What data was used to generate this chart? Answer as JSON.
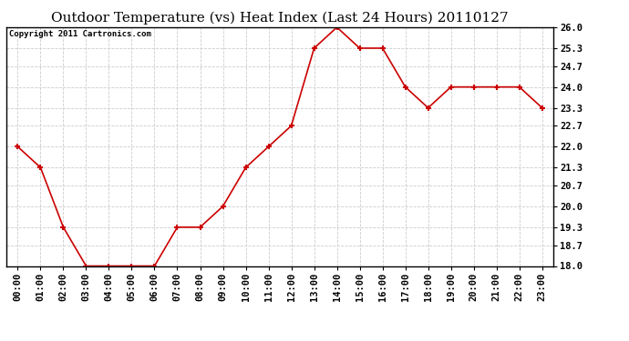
{
  "title": "Outdoor Temperature (vs) Heat Index (Last 24 Hours) 20110127",
  "copyright_text": "Copyright 2011 Cartronics.com",
  "x_labels": [
    "00:00",
    "01:00",
    "02:00",
    "03:00",
    "04:00",
    "05:00",
    "06:00",
    "07:00",
    "08:00",
    "09:00",
    "10:00",
    "11:00",
    "12:00",
    "13:00",
    "14:00",
    "15:00",
    "16:00",
    "17:00",
    "18:00",
    "19:00",
    "20:00",
    "21:00",
    "22:00",
    "23:00"
  ],
  "y_values": [
    22.0,
    21.3,
    19.3,
    18.0,
    18.0,
    18.0,
    18.0,
    19.3,
    19.3,
    20.0,
    21.3,
    22.0,
    22.7,
    25.3,
    26.0,
    25.3,
    25.3,
    24.0,
    23.3,
    24.0,
    24.0,
    24.0,
    24.0,
    23.3
  ],
  "y_min": 18.0,
  "y_max": 26.0,
  "y_ticks": [
    18.0,
    18.7,
    19.3,
    20.0,
    20.7,
    21.3,
    22.0,
    22.7,
    23.3,
    24.0,
    24.7,
    25.3,
    26.0
  ],
  "line_color": "#cc0000",
  "marker": "+",
  "bg_color": "#ffffff",
  "plot_bg_color": "#ffffff",
  "grid_color": "#cccccc",
  "title_fontsize": 11,
  "copyright_fontsize": 6.5,
  "tick_fontsize": 7.5
}
